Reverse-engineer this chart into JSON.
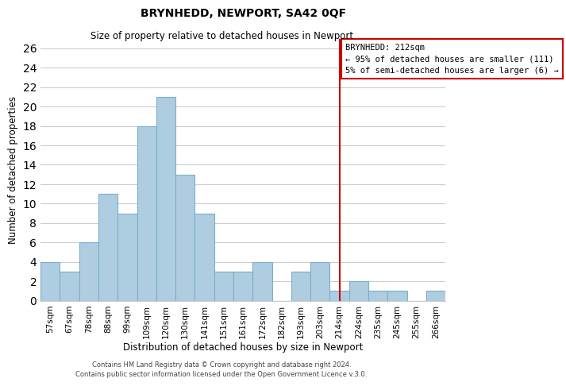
{
  "title": "BRYNHEDD, NEWPORT, SA42 0QF",
  "subtitle": "Size of property relative to detached houses in Newport",
  "xlabel": "Distribution of detached houses by size in Newport",
  "ylabel": "Number of detached properties",
  "bin_labels": [
    "57sqm",
    "67sqm",
    "78sqm",
    "88sqm",
    "99sqm",
    "109sqm",
    "120sqm",
    "130sqm",
    "141sqm",
    "151sqm",
    "161sqm",
    "172sqm",
    "182sqm",
    "193sqm",
    "203sqm",
    "214sqm",
    "224sqm",
    "235sqm",
    "245sqm",
    "255sqm",
    "266sqm"
  ],
  "bar_heights": [
    4,
    3,
    6,
    11,
    9,
    18,
    21,
    13,
    9,
    3,
    3,
    4,
    0,
    3,
    4,
    1,
    2,
    1,
    1,
    0,
    1
  ],
  "bar_color": "#aecde1",
  "bar_edge_color": "#7baecb",
  "marker_bin_index": 15,
  "marker_color": "#cc0000",
  "ylim": [
    0,
    27
  ],
  "yticks": [
    0,
    2,
    4,
    6,
    8,
    10,
    12,
    14,
    16,
    18,
    20,
    22,
    24,
    26
  ],
  "annotation_title": "BRYNHEDD: 212sqm",
  "annotation_line1": "← 95% of detached houses are smaller (111)",
  "annotation_line2": "5% of semi-detached houses are larger (6) →",
  "footer1": "Contains HM Land Registry data © Crown copyright and database right 2024.",
  "footer2": "Contains public sector information licensed under the Open Government Licence v.3.0.",
  "background_color": "#ffffff",
  "grid_color": "#cccccc"
}
